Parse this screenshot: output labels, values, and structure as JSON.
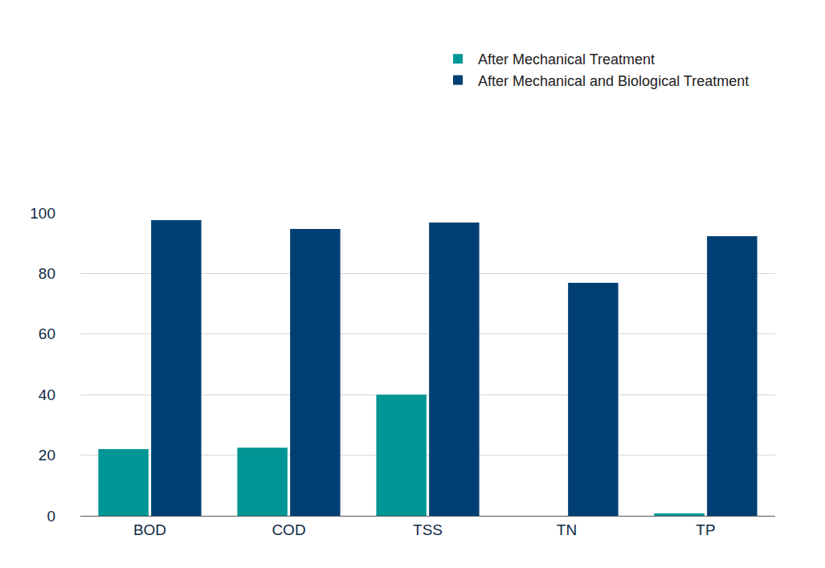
{
  "chart_data": {
    "type": "bar",
    "categories": [
      "BOD",
      "COD",
      "TSS",
      "TN",
      "TP"
    ],
    "series": [
      {
        "name": "After Mechanical Treatment",
        "color": "#009695",
        "values": [
          22.0,
          22.5,
          40.0,
          0,
          0.8
        ]
      },
      {
        "name": "After Mechanical and Biological Treatment",
        "color": "#003F73",
        "values": [
          97.6,
          94.7,
          96.8,
          76.9,
          92.3
        ]
      }
    ],
    "ylim": [
      0,
      100
    ],
    "yticks": [
      0,
      20,
      40,
      60,
      80,
      100
    ],
    "grid": true,
    "legend": "top right"
  }
}
